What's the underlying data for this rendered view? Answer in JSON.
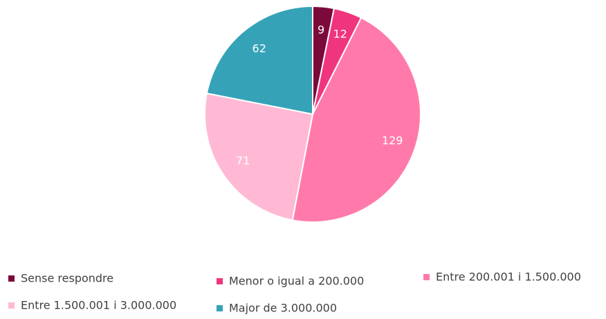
{
  "chart_data": {
    "type": "pie",
    "categories": [
      "Sense respondre",
      "Menor o igual a 200.000",
      "Entre 200.001 i 1.500.000",
      "Entre 1.500.001 i 3.000.000",
      "Major de 3.000.000"
    ],
    "values": [
      9,
      12,
      129,
      71,
      62
    ],
    "colors": [
      "#7b0a3a",
      "#f0357f",
      "#ff7aab",
      "#ffb9d4",
      "#35a2b8"
    ],
    "legend": "bottom"
  }
}
